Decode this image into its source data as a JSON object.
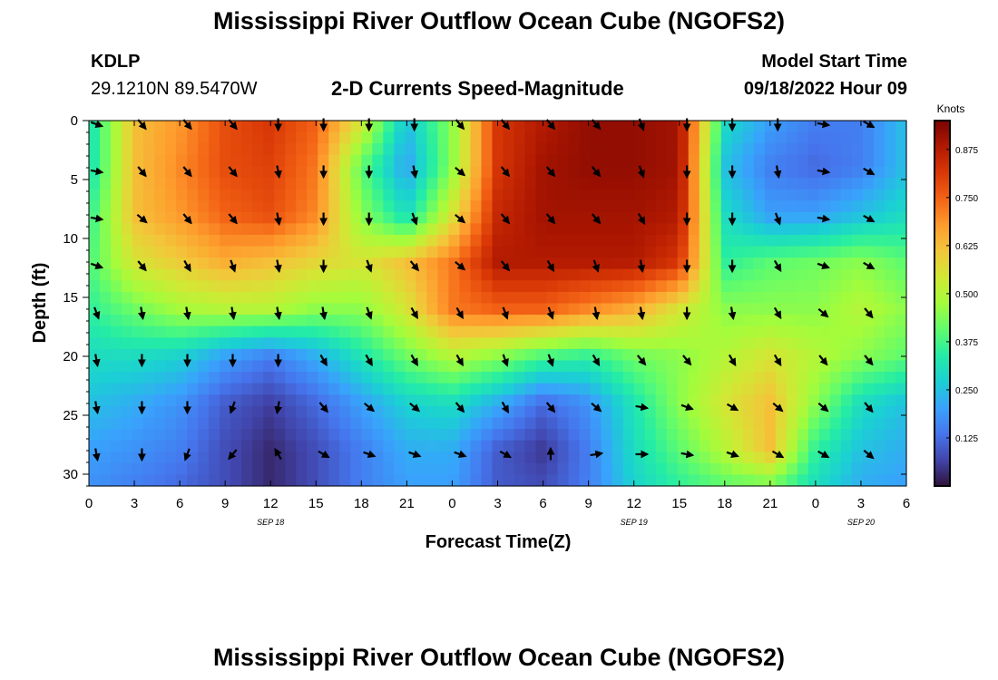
{
  "header": {
    "title": "Mississippi River Outflow Ocean Cube (NGOFS2)",
    "station": "KDLP",
    "coords": "29.1210N  89.5470W",
    "subtitle": "2-D Currents Speed-Magnitude",
    "model_start_label": "Model Start Time",
    "model_start_value": "09/18/2022 Hour 09",
    "footer_title": "Mississippi River Outflow Ocean Cube (NGOFS2)"
  },
  "chart_data": {
    "type": "heatmap",
    "title": "2-D Currents Speed-Magnitude",
    "xlabel": "Forecast Time(Z)",
    "ylabel": "Depth (ft)",
    "x_range_hours": [
      0,
      54
    ],
    "y_range_ft": [
      0,
      31
    ],
    "y_inverted": true,
    "x_tick_labels": [
      "0",
      "3",
      "6",
      "9",
      "12",
      "15",
      "18",
      "21",
      "0",
      "3",
      "6",
      "9",
      "12",
      "15",
      "18",
      "21",
      "0",
      "3",
      "6"
    ],
    "y_tick_labels": [
      "0",
      "5",
      "10",
      "15",
      "20",
      "25",
      "30"
    ],
    "y_ticks": [
      0,
      5,
      10,
      15,
      20,
      25,
      30
    ],
    "date_labels": [
      {
        "label": "SEP 18",
        "hour": 12
      },
      {
        "label": "SEP 19",
        "hour": 36
      },
      {
        "label": "SEP 20",
        "hour": 51
      }
    ],
    "colorbar": {
      "title": "Knots",
      "min": 0,
      "max": 0.95,
      "tick_values": [
        0.125,
        0.25,
        0.375,
        0.5,
        0.625,
        0.75,
        0.875
      ],
      "tick_labels": [
        "0.125",
        "0.250",
        "0.375",
        "0.500",
        "0.625",
        "0.750",
        "0.875"
      ],
      "colormap": [
        "#30123b",
        "#4145ab",
        "#4675ed",
        "#39a2fc",
        "#1bcfd4",
        "#24eca6",
        "#61fc6c",
        "#a4fc3b",
        "#d1e834",
        "#f3c63a",
        "#fe9b2d",
        "#f36315",
        "#d93806",
        "#b11901",
        "#7a0402"
      ]
    },
    "speed_knots_by_depth": {
      "depths_ft": [
        0,
        4,
        8,
        12,
        16,
        20,
        24,
        28,
        31
      ],
      "hours": [
        0,
        3,
        6,
        9,
        12,
        15,
        18,
        21,
        24,
        27,
        30,
        33,
        36,
        39,
        42,
        45,
        48,
        51,
        54
      ],
      "values": [
        [
          0.3,
          0.62,
          0.68,
          0.78,
          0.82,
          0.75,
          0.55,
          0.25,
          0.45,
          0.82,
          0.88,
          0.92,
          0.92,
          0.9,
          0.3,
          0.2,
          0.15,
          0.15,
          0.25
        ],
        [
          0.3,
          0.62,
          0.7,
          0.78,
          0.8,
          0.72,
          0.4,
          0.2,
          0.45,
          0.82,
          0.9,
          0.92,
          0.92,
          0.9,
          0.25,
          0.15,
          0.12,
          0.15,
          0.25
        ],
        [
          0.35,
          0.62,
          0.68,
          0.75,
          0.78,
          0.7,
          0.45,
          0.3,
          0.55,
          0.85,
          0.9,
          0.9,
          0.9,
          0.88,
          0.3,
          0.2,
          0.2,
          0.25,
          0.3
        ],
        [
          0.38,
          0.55,
          0.6,
          0.65,
          0.62,
          0.58,
          0.55,
          0.62,
          0.72,
          0.88,
          0.88,
          0.88,
          0.88,
          0.82,
          0.35,
          0.4,
          0.42,
          0.45,
          0.4
        ],
        [
          0.35,
          0.42,
          0.48,
          0.5,
          0.5,
          0.45,
          0.45,
          0.55,
          0.72,
          0.75,
          0.75,
          0.7,
          0.65,
          0.55,
          0.45,
          0.45,
          0.45,
          0.5,
          0.45
        ],
        [
          0.3,
          0.3,
          0.28,
          0.2,
          0.15,
          0.22,
          0.32,
          0.42,
          0.5,
          0.45,
          0.38,
          0.35,
          0.42,
          0.45,
          0.5,
          0.55,
          0.5,
          0.45,
          0.4
        ],
        [
          0.25,
          0.22,
          0.18,
          0.1,
          0.06,
          0.12,
          0.2,
          0.28,
          0.3,
          0.22,
          0.12,
          0.18,
          0.32,
          0.45,
          0.55,
          0.62,
          0.45,
          0.3,
          0.25
        ],
        [
          0.2,
          0.18,
          0.15,
          0.08,
          0.03,
          0.08,
          0.15,
          0.22,
          0.22,
          0.1,
          0.05,
          0.15,
          0.3,
          0.4,
          0.5,
          0.62,
          0.35,
          0.25,
          0.22
        ],
        [
          0.18,
          0.15,
          0.12,
          0.08,
          0.03,
          0.08,
          0.15,
          0.2,
          0.2,
          0.1,
          0.08,
          0.15,
          0.28,
          0.35,
          0.4,
          0.42,
          0.3,
          0.22,
          0.2
        ]
      ]
    },
    "vectors": {
      "hours": [
        0.5,
        3.5,
        6.5,
        9.5,
        12.5,
        15.5,
        18.5,
        21.5,
        24.5,
        27.5,
        30.5,
        33.5,
        36.5,
        39.5,
        42.5,
        45.5,
        48.5,
        51.5
      ],
      "depths_ft": [
        0,
        4,
        8,
        12,
        16,
        20,
        24,
        28
      ],
      "directions_deg": [
        [
          110,
          140,
          140,
          140,
          180,
          180,
          180,
          180,
          140,
          140,
          140,
          140,
          160,
          180,
          180,
          180,
          100,
          120
        ],
        [
          100,
          140,
          140,
          140,
          170,
          180,
          180,
          170,
          130,
          140,
          140,
          140,
          160,
          180,
          180,
          170,
          100,
          120
        ],
        [
          100,
          130,
          140,
          140,
          170,
          180,
          180,
          160,
          130,
          140,
          140,
          140,
          150,
          180,
          180,
          160,
          100,
          120
        ],
        [
          110,
          140,
          150,
          160,
          170,
          180,
          160,
          140,
          130,
          140,
          150,
          160,
          170,
          180,
          180,
          150,
          110,
          120
        ],
        [
          160,
          170,
          170,
          170,
          170,
          170,
          160,
          150,
          150,
          160,
          160,
          170,
          170,
          180,
          170,
          150,
          130,
          140
        ],
        [
          170,
          180,
          180,
          180,
          180,
          150,
          150,
          150,
          150,
          160,
          160,
          150,
          140,
          140,
          150,
          150,
          140,
          140
        ],
        [
          170,
          180,
          180,
          200,
          190,
          140,
          130,
          130,
          140,
          150,
          140,
          130,
          100,
          110,
          120,
          130,
          130,
          140
        ],
        [
          170,
          180,
          200,
          220,
          330,
          120,
          110,
          110,
          110,
          120,
          0,
          80,
          90,
          100,
          110,
          120,
          120,
          130
        ]
      ]
    }
  }
}
